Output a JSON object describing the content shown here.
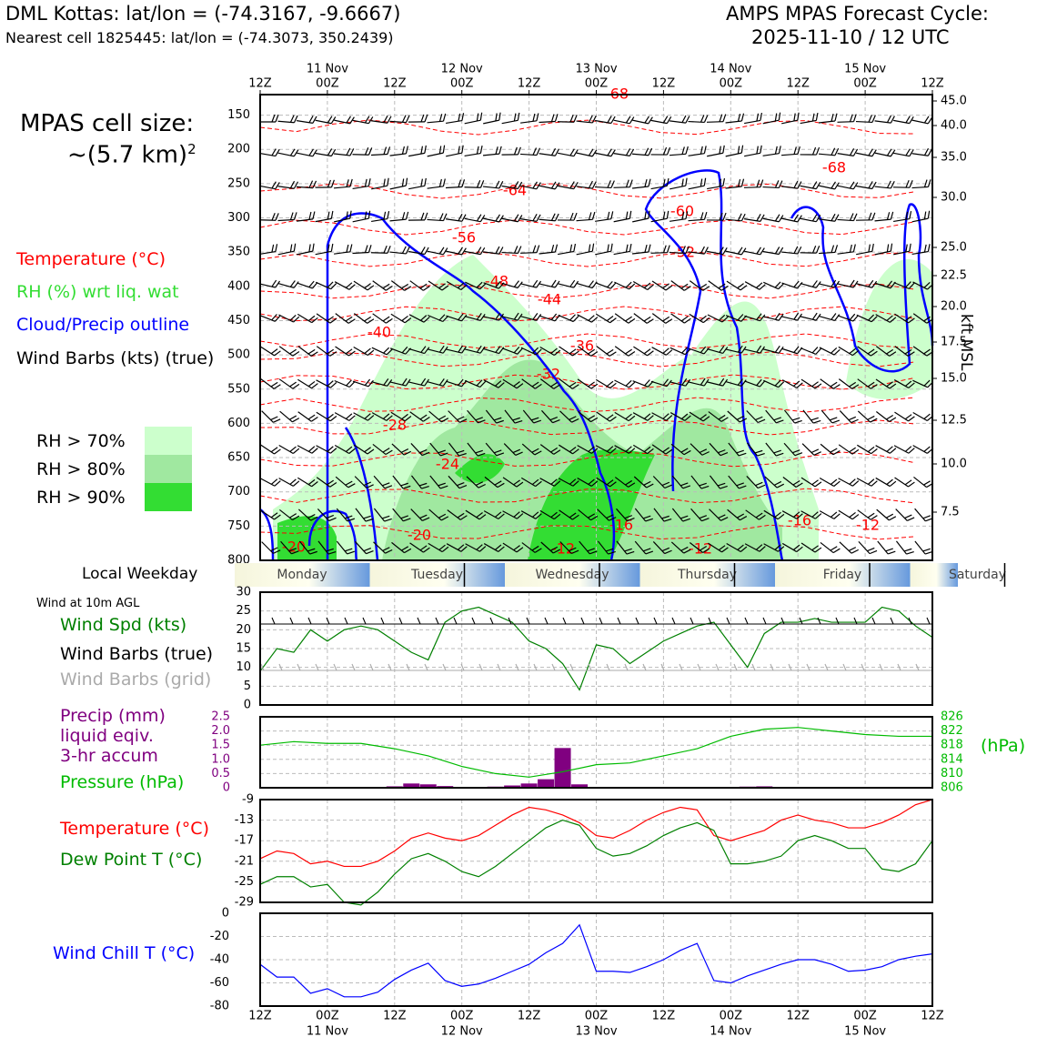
{
  "header": {
    "station": "DML Kottas: lat/lon = (-74.3167, -9.6667)",
    "nearest": "Nearest cell 1825445: lat/lon = (-74.3073, 350.2439)",
    "cycle_title": "AMPS MPAS Forecast Cycle:",
    "cycle_time": "2025-11-10 / 12 UTC"
  },
  "cell_size": {
    "line1": "MPAS cell size:",
    "line2": "~(5.7 km)",
    "sup": "2"
  },
  "legend": {
    "temperature": "Temperature (°C)",
    "rh": "RH (%) wrt liq. wat",
    "cloud": "Cloud/Precip outline",
    "barbs": "Wind Barbs (kts) (true)",
    "rh70": "RH > 70%",
    "rh80": "RH > 80%",
    "rh90": "RH > 90%"
  },
  "colors": {
    "temp": "#ff0000",
    "rh70": "#ccffcc",
    "rh80": "#a0e8a0",
    "rh90": "#33dd33",
    "cloud": "#0000ff",
    "windspd": "#008000",
    "precip": "#800080",
    "pressure": "#00bb00",
    "dewpoint": "#008000",
    "windchill": "#0000ff",
    "grid_barb": "#aaaaaa"
  },
  "time_axis": {
    "top_hours": [
      "12Z",
      "00Z",
      "12Z",
      "00Z",
      "12Z",
      "00Z",
      "12Z",
      "00Z",
      "12Z",
      "00Z",
      "12Z"
    ],
    "dates": [
      "11 Nov",
      "12 Nov",
      "13 Nov",
      "14 Nov",
      "15 Nov"
    ]
  },
  "weekdays": [
    "Monday",
    "Tuesday",
    "Wednesday",
    "Thursday",
    "Friday",
    "Saturday"
  ],
  "weekday_title": "Local Weekday",
  "wind_panel": {
    "title": "Wind at 10m AGL",
    "spd_label": "Wind Spd (kts)",
    "barbs_true": "Wind Barbs (true)",
    "barbs_grid": "Wind Barbs (grid)"
  },
  "precip_panel": {
    "line1": "Precip (mm)",
    "line2": "liquid eqiv.",
    "line3": "3-hr accum",
    "pressure_label": "Pressure (hPa)",
    "hpa_unit": "(hPa)"
  },
  "temp_panel": {
    "temp_label": "Temperature (°C)",
    "dew_label": "Dew Point T (°C)"
  },
  "chill_panel": {
    "label": "Wind Chill T (°C)"
  },
  "chart_data": [
    {
      "type": "heatmap",
      "name": "cross-section",
      "y_pressure_ticks": [
        "150",
        "200",
        "250",
        "300",
        "350",
        "400",
        "450",
        "500",
        "550",
        "600",
        "650",
        "700",
        "750",
        "800"
      ],
      "ylim_hpa": [
        800,
        120
      ],
      "right_axis_label": "kft MSL",
      "right_ticks": [
        "45.0",
        "40.0",
        "35.0",
        "30.0",
        "25.0",
        "22.5",
        "20.0",
        "17.5",
        "15.0",
        "12.5",
        "10.0",
        "7.5"
      ],
      "temp_contour_labels": [
        "-68",
        "-64",
        "-60",
        "-56",
        "-52",
        "-48",
        "-44",
        "-40",
        "-36",
        "-32",
        "-28",
        "-24",
        "-20",
        "-20",
        "-16",
        "-16",
        "-12",
        "-12",
        "-12",
        "-68"
      ]
    },
    {
      "type": "line",
      "name": "wind-speed",
      "ylim": [
        0,
        30
      ],
      "yticks": [
        "0",
        "5",
        "10",
        "15",
        "20",
        "25",
        "30"
      ],
      "x_hours": [
        0,
        3,
        6,
        9,
        12,
        15,
        18,
        21,
        24,
        27,
        30,
        33,
        36,
        39,
        42,
        45,
        48,
        51,
        54,
        57,
        60,
        63,
        66,
        69,
        72,
        75,
        78,
        81,
        84,
        87,
        90,
        93,
        96,
        99,
        102,
        105,
        108,
        111,
        114,
        117,
        120
      ],
      "values": [
        9,
        15,
        14,
        20,
        17,
        20,
        21,
        20,
        17,
        14,
        12,
        22,
        25,
        26,
        24,
        22,
        17,
        15,
        11,
        4,
        16,
        15,
        11,
        14,
        17,
        19,
        21,
        22,
        16,
        10,
        19,
        22,
        22,
        23,
        22,
        22,
        22,
        26,
        25,
        21,
        18
      ]
    },
    {
      "type": "bar",
      "name": "precip",
      "ylim": [
        0,
        2.5
      ],
      "yticks": [
        "0",
        "0.5",
        "1.0",
        "1.5",
        "2.0",
        "2.5"
      ],
      "x_hours": [
        24,
        27,
        30,
        33,
        42,
        45,
        48,
        51,
        54,
        57,
        87,
        90
      ],
      "values": [
        0.05,
        0.15,
        0.12,
        0.06,
        0.04,
        0.08,
        0.15,
        0.3,
        1.4,
        0.12,
        0.04,
        0.05
      ]
    },
    {
      "type": "line",
      "name": "pressure",
      "ylim": [
        806,
        826
      ],
      "yticks": [
        "806",
        "810",
        "814",
        "818",
        "822",
        "826"
      ],
      "x_hours": [
        0,
        6,
        12,
        18,
        24,
        30,
        36,
        42,
        48,
        54,
        60,
        66,
        72,
        78,
        84,
        90,
        96,
        102,
        108,
        114,
        120
      ],
      "values": [
        818,
        819,
        818.5,
        818.5,
        817,
        815,
        812,
        810,
        809,
        810.5,
        812.5,
        813,
        815,
        817,
        820.5,
        822.5,
        823,
        822,
        821,
        820.5,
        820.5
      ]
    },
    {
      "type": "line",
      "name": "temperature-dewpoint",
      "ylim": [
        -29,
        -9
      ],
      "yticks": [
        "-9",
        "-13",
        "-17",
        "-21",
        "-25",
        "-29"
      ],
      "x_hours": [
        0,
        3,
        6,
        9,
        12,
        15,
        18,
        21,
        24,
        27,
        30,
        33,
        36,
        39,
        42,
        45,
        48,
        51,
        54,
        57,
        60,
        63,
        66,
        69,
        72,
        75,
        78,
        81,
        84,
        87,
        90,
        93,
        96,
        99,
        102,
        105,
        108,
        111,
        114,
        117,
        120
      ],
      "series": [
        {
          "name": "Temperature (°C)",
          "values": [
            -20.5,
            -19,
            -19.5,
            -21.5,
            -21,
            -22,
            -22,
            -21,
            -19,
            -16.5,
            -15.5,
            -16.5,
            -17,
            -16,
            -14,
            -12,
            -10.5,
            -11,
            -12,
            -13.5,
            -16,
            -16.5,
            -15,
            -13,
            -11.5,
            -10.5,
            -11,
            -16,
            -17,
            -16,
            -15,
            -13,
            -12,
            -13,
            -13.5,
            -14.5,
            -14.5,
            -13.5,
            -12,
            -10,
            -9
          ]
        },
        {
          "name": "Dew Point T (°C)",
          "values": [
            -25.5,
            -24,
            -24,
            -26,
            -25.5,
            -29,
            -29.5,
            -27,
            -23.5,
            -20.5,
            -19.5,
            -21,
            -23,
            -24,
            -22,
            -19.5,
            -17,
            -14.5,
            -13,
            -14,
            -18.5,
            -20,
            -19.5,
            -18,
            -16,
            -14.5,
            -13.5,
            -15,
            -21.5,
            -21.5,
            -21,
            -20,
            -17,
            -16,
            -17,
            -18.5,
            -18.5,
            -22.5,
            -23,
            -21.5,
            -17
          ]
        }
      ]
    },
    {
      "type": "line",
      "name": "wind-chill",
      "ylim": [
        -80,
        0
      ],
      "yticks": [
        "0",
        "-20",
        "-40",
        "-60",
        "-80"
      ],
      "x_hours": [
        0,
        3,
        6,
        9,
        12,
        15,
        18,
        21,
        24,
        27,
        30,
        33,
        36,
        39,
        42,
        45,
        48,
        51,
        54,
        57,
        60,
        63,
        66,
        69,
        72,
        75,
        78,
        81,
        84,
        87,
        90,
        93,
        96,
        99,
        102,
        105,
        108,
        111,
        114,
        117,
        120
      ],
      "values": [
        -44,
        -55,
        -55,
        -69,
        -65,
        -72,
        -72,
        -68,
        -57,
        -49,
        -43,
        -58,
        -63,
        -61,
        -56,
        -50,
        -44,
        -34,
        -26,
        -10,
        -50,
        -50,
        -51,
        -46,
        -40,
        -32,
        -26,
        -58,
        -60,
        -54,
        -49,
        -44,
        -40,
        -40,
        -44,
        -50,
        -49,
        -46,
        -40,
        -37,
        -35
      ]
    }
  ]
}
